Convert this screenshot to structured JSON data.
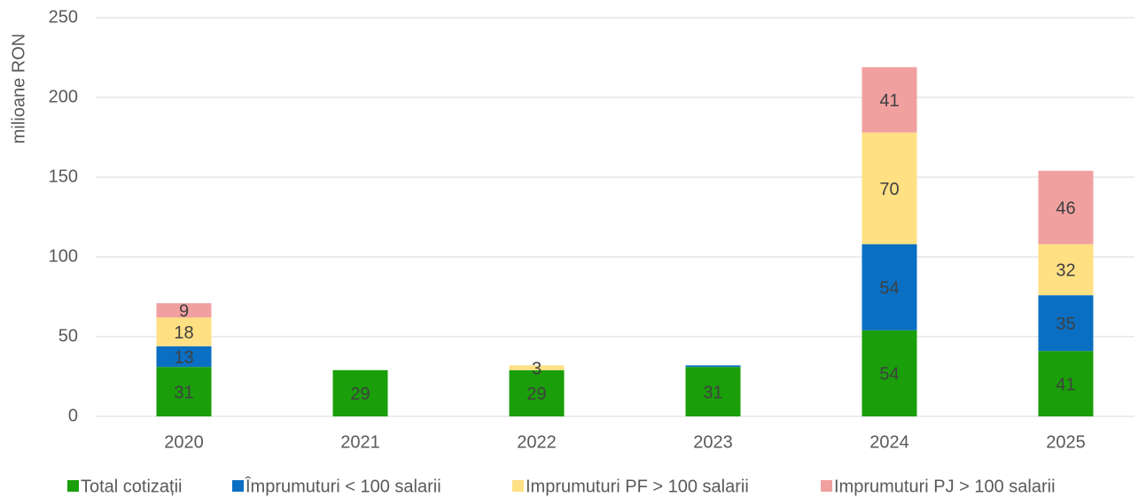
{
  "chart_data": {
    "type": "stacked_bar",
    "y_axis_label": "milioane RON",
    "categories": [
      "2020",
      "2021",
      "2022",
      "2023",
      "2024",
      "2025"
    ],
    "series": [
      {
        "name": "Total cotizații",
        "color": "#1a9e0a",
        "values": [
          31,
          29,
          29,
          31,
          54,
          41
        ],
        "value_labels": [
          "31",
          "29",
          "29",
          "31",
          "54",
          "41"
        ]
      },
      {
        "name": "Împrumuturi < 100 salarii",
        "color": "#0a6fc2",
        "values": [
          13,
          null,
          null,
          1,
          54,
          35
        ],
        "value_labels": [
          "13",
          null,
          null,
          null,
          "54",
          "35"
        ]
      },
      {
        "name": "Imprumuturi PF > 100 salarii",
        "color": "#ffe083",
        "values": [
          18,
          null,
          3,
          null,
          70,
          32
        ],
        "value_labels": [
          "18",
          null,
          "3",
          null,
          "70",
          "32"
        ]
      },
      {
        "name": "Imprumuturi PJ > 100 salarii",
        "color": "#f1a0a0",
        "values": [
          9,
          null,
          null,
          null,
          41,
          46
        ],
        "value_labels": [
          "9",
          null,
          null,
          null,
          "41",
          "46"
        ]
      }
    ],
    "ylim": [
      0,
      250
    ],
    "yticks": [
      0,
      50,
      100,
      150,
      200,
      250
    ],
    "grid": true,
    "legend": "bottom"
  }
}
